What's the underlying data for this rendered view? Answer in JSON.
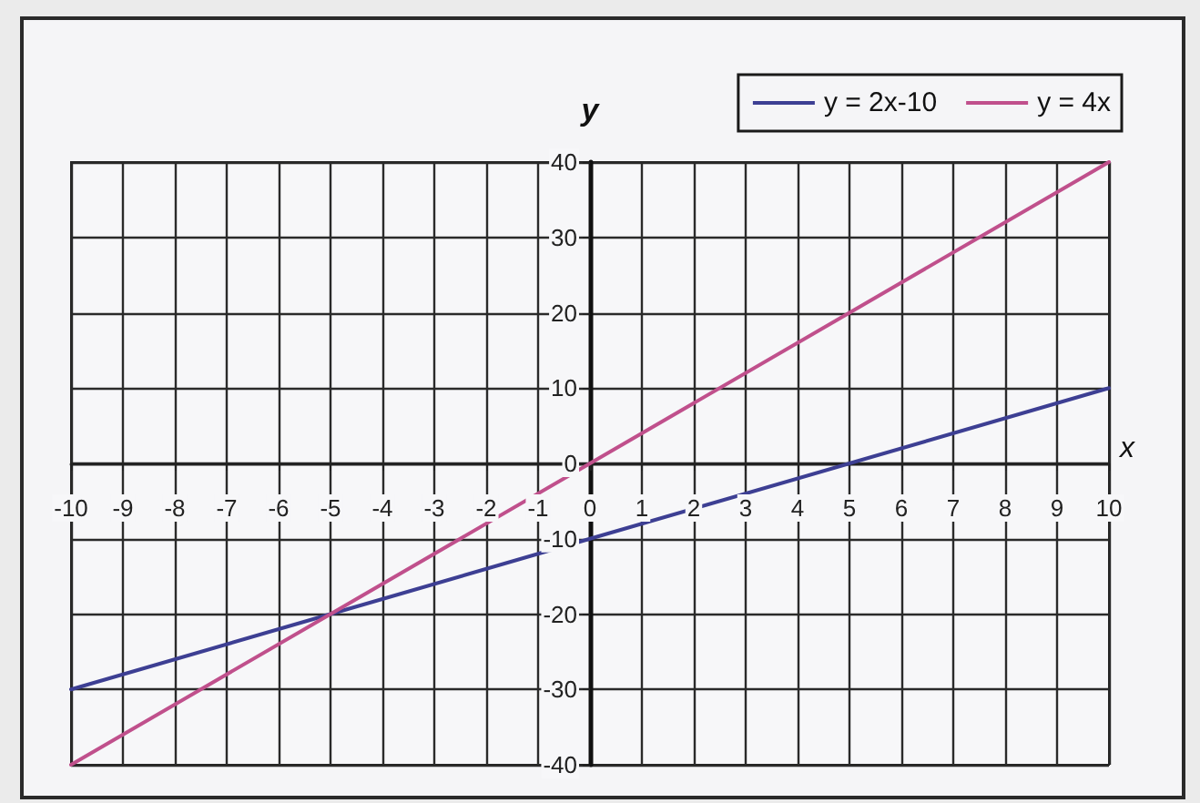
{
  "chart_data": {
    "type": "line",
    "xlabel": "x",
    "ylabel": "y",
    "x": [
      -10,
      -5,
      0,
      5,
      10
    ],
    "series": [
      {
        "name": "y = 2x-10",
        "color": "#3d3f93",
        "values": [
          -30,
          -20,
          -10,
          0,
          10
        ]
      },
      {
        "name": "y = 4x",
        "color": "#c0508c",
        "values": [
          -40,
          -20,
          0,
          20,
          40
        ]
      }
    ],
    "xlim": [
      -10,
      10
    ],
    "xticks": [
      -10,
      -9,
      -8,
      -7,
      -6,
      -5,
      -4,
      -3,
      -2,
      -1,
      0,
      1,
      2,
      3,
      4,
      5,
      6,
      7,
      8,
      9,
      10
    ],
    "ylim": [
      -40,
      40
    ],
    "yticks": [
      -40,
      -30,
      -20,
      -10,
      0,
      10,
      20,
      30,
      40
    ],
    "grid": true,
    "legend": "top right",
    "marker": "none",
    "line_style": "solid"
  }
}
